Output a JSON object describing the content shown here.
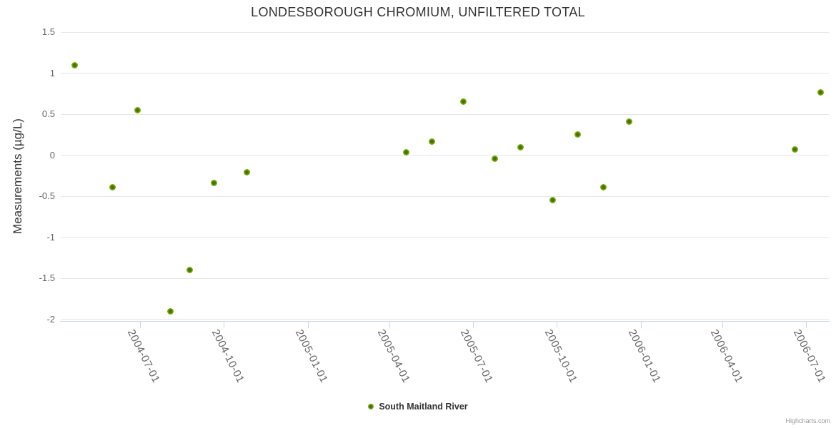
{
  "credit": "Highcharts.com",
  "colors": {
    "marker_core": "#476f02",
    "marker_mid": "#74aa05",
    "marker_outer": "#8cc32c",
    "grid_line": "#e6e6e6",
    "axis_line": "#ccd6eb",
    "tick_label": "#666666",
    "title_text": "#333333",
    "credit_text": "#999999"
  },
  "chart_data": {
    "type": "scatter",
    "title": "LONDESBOROUGH CHROMIUM, UNFILTERED TOTAL",
    "xlabel": "",
    "ylabel": "Measurements (µg/L)",
    "x_type": "datetime",
    "grid": "horizontal",
    "legend_position": "bottom-center",
    "xlim": [
      "2004-04-05",
      "2006-07-26"
    ],
    "ylim": [
      -2.02,
      1.5
    ],
    "x_ticks": [
      "2004-07-01",
      "2004-10-01",
      "2005-01-01",
      "2005-04-01",
      "2005-07-01",
      "2005-10-01",
      "2006-01-01",
      "2006-04-01",
      "2006-07-01"
    ],
    "y_ticks": [
      1.5,
      1,
      0.5,
      0,
      -0.5,
      -1,
      -1.5,
      -2
    ],
    "y_tick_labels": [
      "1.5",
      "1",
      "0.5",
      "0",
      "-0.5",
      "-1",
      "-1.5",
      "-2"
    ],
    "series": [
      {
        "name": "South Maitland River",
        "color": "#74aa05",
        "points": [
          {
            "x": "2004-04-20",
            "y": 1.1
          },
          {
            "x": "2004-06-01",
            "y": -0.39
          },
          {
            "x": "2004-06-28",
            "y": 0.55
          },
          {
            "x": "2004-08-03",
            "y": -1.9
          },
          {
            "x": "2004-08-24",
            "y": -1.4
          },
          {
            "x": "2004-09-20",
            "y": -0.34
          },
          {
            "x": "2004-10-26",
            "y": -0.21
          },
          {
            "x": "2005-04-19",
            "y": 0.04
          },
          {
            "x": "2005-05-17",
            "y": 0.17
          },
          {
            "x": "2005-06-20",
            "y": 0.65
          },
          {
            "x": "2005-07-25",
            "y": -0.04
          },
          {
            "x": "2005-08-22",
            "y": 0.1
          },
          {
            "x": "2005-09-26",
            "y": -0.55
          },
          {
            "x": "2005-10-24",
            "y": 0.25
          },
          {
            "x": "2005-11-21",
            "y": -0.39
          },
          {
            "x": "2005-12-19",
            "y": 0.41
          },
          {
            "x": "2006-06-19",
            "y": 0.07
          },
          {
            "x": "2006-07-17",
            "y": 0.77
          }
        ]
      }
    ]
  }
}
